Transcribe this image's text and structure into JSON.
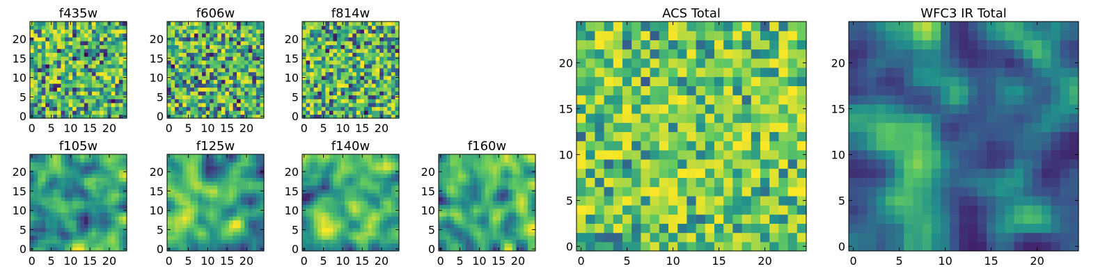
{
  "figure": {
    "colormap": [
      "#440154",
      "#3b528b",
      "#21918c",
      "#5ec962",
      "#fde725"
    ]
  },
  "chart_data": [
    {
      "type": "heatmap",
      "title": "f435w",
      "size": 25,
      "texture": "noise",
      "seed": 11,
      "xticks": [
        0,
        5,
        10,
        15,
        20
      ],
      "yticks": [
        0,
        5,
        10,
        15,
        20
      ],
      "xlim": [
        0,
        25
      ],
      "ylim": [
        0,
        25
      ],
      "xlabel": "",
      "ylabel": ""
    },
    {
      "type": "heatmap",
      "title": "f606w",
      "size": 25,
      "texture": "noise",
      "seed": 23,
      "xticks": [
        0,
        5,
        10,
        15,
        20
      ],
      "yticks": [
        0,
        5,
        10,
        15,
        20
      ],
      "xlim": [
        0,
        25
      ],
      "ylim": [
        0,
        25
      ],
      "xlabel": "",
      "ylabel": ""
    },
    {
      "type": "heatmap",
      "title": "f814w",
      "size": 25,
      "texture": "noise",
      "seed": 37,
      "xticks": [
        0,
        5,
        10,
        15,
        20
      ],
      "yticks": [
        0,
        5,
        10,
        15,
        20
      ],
      "xlim": [
        0,
        25
      ],
      "ylim": [
        0,
        25
      ],
      "xlabel": "",
      "ylabel": ""
    },
    {
      "type": "heatmap",
      "title": "f105w",
      "size": 25,
      "texture": "smooth",
      "seed": 41,
      "xticks": [
        0,
        5,
        10,
        15,
        20
      ],
      "yticks": [
        0,
        5,
        10,
        15,
        20
      ],
      "xlim": [
        0,
        25
      ],
      "ylim": [
        0,
        25
      ],
      "xlabel": "",
      "ylabel": ""
    },
    {
      "type": "heatmap",
      "title": "f125w",
      "size": 25,
      "texture": "smooth",
      "seed": 53,
      "xticks": [
        0,
        5,
        10,
        15,
        20
      ],
      "yticks": [
        0,
        5,
        10,
        15,
        20
      ],
      "xlim": [
        0,
        25
      ],
      "ylim": [
        0,
        25
      ],
      "xlabel": "",
      "ylabel": ""
    },
    {
      "type": "heatmap",
      "title": "f140w",
      "size": 25,
      "texture": "smooth",
      "seed": 67,
      "xticks": [
        0,
        5,
        10,
        15,
        20
      ],
      "yticks": [
        0,
        5,
        10,
        15,
        20
      ],
      "xlim": [
        0,
        25
      ],
      "ylim": [
        0,
        25
      ],
      "xlabel": "",
      "ylabel": ""
    },
    {
      "type": "heatmap",
      "title": "f160w",
      "size": 25,
      "texture": "smooth",
      "seed": 79,
      "xticks": [
        0,
        5,
        10,
        15,
        20
      ],
      "yticks": [
        0,
        5,
        10,
        15,
        20
      ],
      "xlim": [
        0,
        25
      ],
      "ylim": [
        0,
        25
      ],
      "xlabel": "",
      "ylabel": ""
    },
    {
      "type": "heatmap",
      "title": "ACS Total",
      "size": 25,
      "texture": "noise-bright",
      "seed": 97,
      "xticks": [
        0,
        5,
        10,
        15,
        20
      ],
      "yticks": [
        0,
        5,
        10,
        15,
        20
      ],
      "xlim": [
        0,
        25
      ],
      "ylim": [
        0,
        25
      ],
      "xlabel": "",
      "ylabel": ""
    },
    {
      "type": "heatmap",
      "title": "WFC3 IR Total",
      "size": 25,
      "texture": "smooth-dim",
      "seed": 101,
      "xticks": [
        0,
        5,
        10,
        15,
        20
      ],
      "yticks": [
        0,
        5,
        10,
        15,
        20
      ],
      "xlim": [
        0,
        25
      ],
      "ylim": [
        0,
        25
      ],
      "xlabel": "",
      "ylabel": ""
    }
  ]
}
